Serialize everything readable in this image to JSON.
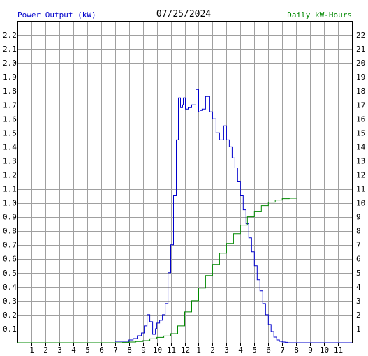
{
  "header": {
    "left_label": "Power Output (kW)",
    "title": "07/25/2024",
    "right_label": "Daily kW-Hours"
  },
  "colors": {
    "power": "#0000cc",
    "energy": "#008800",
    "grid": "#a0a0a0",
    "axis": "#000000",
    "left_label": "#0000cc",
    "right_label": "#008800"
  },
  "chart_data": {
    "type": "line",
    "title": "07/25/2024",
    "grid": true,
    "x_tick_labels": [
      "1",
      "2",
      "3",
      "4",
      "5",
      "6",
      "7",
      "8",
      "9",
      "10",
      "11",
      "12",
      "1",
      "2",
      "3",
      "4",
      "5",
      "6",
      "7",
      "8",
      "9",
      "10",
      "11"
    ],
    "xlim": [
      0,
      24
    ],
    "left_axis": {
      "label": "Power Output (kW)",
      "range": [
        0,
        2.3
      ],
      "ticks": [
        "0.1",
        "0.2",
        "0.3",
        "0.4",
        "0.5",
        "0.6",
        "0.7",
        "0.8",
        "0.9",
        "1.0",
        "1.1",
        "1.2",
        "1.3",
        "1.4",
        "1.5",
        "1.6",
        "1.7",
        "1.8",
        "1.9",
        "2.0",
        "2.1",
        "2.2"
      ]
    },
    "right_axis": {
      "label": "Daily kW-Hours",
      "range": [
        0,
        23
      ],
      "ticks": [
        "1",
        "2",
        "3",
        "4",
        "5",
        "6",
        "7",
        "8",
        "9",
        "10",
        "11",
        "12",
        "13",
        "14",
        "15",
        "16",
        "17",
        "18",
        "19",
        "20",
        "21",
        "22"
      ]
    },
    "series": [
      {
        "name": "Power Output (kW)",
        "axis": "left",
        "x": [
          0,
          6.9,
          7.0,
          7.5,
          8.0,
          8.3,
          8.6,
          8.9,
          9.1,
          9.3,
          9.5,
          9.7,
          9.9,
          10.0,
          10.2,
          10.4,
          10.6,
          10.8,
          11.0,
          11.2,
          11.4,
          11.55,
          11.7,
          11.85,
          11.9,
          12.05,
          12.25,
          12.5,
          12.8,
          13.0,
          13.1,
          13.25,
          13.5,
          13.8,
          14.0,
          14.25,
          14.5,
          14.8,
          15.0,
          15.2,
          15.4,
          15.6,
          15.8,
          16.0,
          16.2,
          16.4,
          16.6,
          16.8,
          17.0,
          17.2,
          17.4,
          17.6,
          17.8,
          18.0,
          18.2,
          18.4,
          18.6,
          18.8,
          19.0,
          19.2,
          19.4,
          19.6,
          19.8,
          20.0,
          20.5,
          21.0,
          22.0,
          24.0
        ],
        "y": [
          0,
          0,
          0.01,
          0.01,
          0.02,
          0.03,
          0.05,
          0.07,
          0.12,
          0.2,
          0.15,
          0.06,
          0.1,
          0.14,
          0.16,
          0.2,
          0.28,
          0.5,
          0.7,
          1.05,
          1.45,
          1.75,
          1.68,
          1.7,
          1.75,
          1.67,
          1.68,
          1.7,
          1.81,
          1.65,
          1.66,
          1.67,
          1.76,
          1.65,
          1.6,
          1.5,
          1.45,
          1.55,
          1.45,
          1.4,
          1.32,
          1.25,
          1.15,
          1.05,
          0.95,
          0.85,
          0.75,
          0.65,
          0.55,
          0.45,
          0.37,
          0.28,
          0.2,
          0.13,
          0.08,
          0.04,
          0.02,
          0.01,
          0.005,
          0.003,
          0,
          0,
          0,
          0,
          0,
          0,
          0,
          0
        ]
      },
      {
        "name": "Daily kW-Hours",
        "axis": "right",
        "x": [
          0,
          6.9,
          7.5,
          8.0,
          8.5,
          9.0,
          9.5,
          10.0,
          10.5,
          11.0,
          11.5,
          12.0,
          12.5,
          13.0,
          13.5,
          14.0,
          14.5,
          15.0,
          15.5,
          16.0,
          16.5,
          17.0,
          17.5,
          18.0,
          18.5,
          19.0,
          19.5,
          20.0,
          21.0,
          22.0,
          24.0
        ],
        "y": [
          0,
          0,
          0.02,
          0.05,
          0.09,
          0.15,
          0.28,
          0.38,
          0.48,
          0.65,
          1.2,
          2.2,
          3.0,
          3.9,
          4.8,
          5.6,
          6.4,
          7.1,
          7.8,
          8.4,
          9.0,
          9.4,
          9.8,
          10.05,
          10.2,
          10.3,
          10.33,
          10.35,
          10.35,
          10.35,
          10.35
        ]
      }
    ]
  }
}
